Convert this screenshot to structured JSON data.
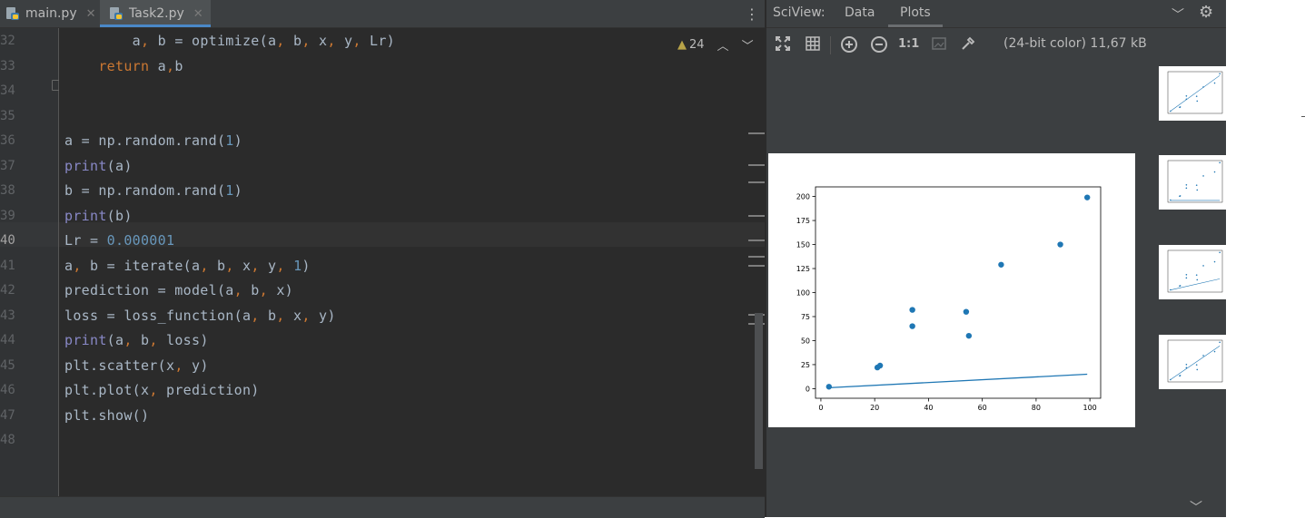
{
  "editor": {
    "tabs": [
      {
        "label": "main.py",
        "active": false
      },
      {
        "label": "Task2.py",
        "active": true
      }
    ],
    "warnings_count": "24",
    "line_numbers": [
      "32",
      "33",
      "34",
      "35",
      "36",
      "37",
      "38",
      "39",
      "40",
      "41",
      "42",
      "43",
      "44",
      "45",
      "46",
      "47",
      "48"
    ],
    "current_line": "40",
    "lines": [
      "        a, b = optimize(a, b, x, y, Lr)",
      "    return a,b",
      "",
      "",
      "a = np.random.rand(1)",
      "print(a)",
      "b = np.random.rand(1)",
      "print(b)",
      "Lr = 0.000001",
      "a, b = iterate(a, b, x, y, 1)",
      "prediction = model(a, b, x)",
      "loss = loss_function(a, b, x, y)",
      "print(a, b, loss)",
      "plt.scatter(x, y)",
      "plt.plot(x, prediction)",
      "plt.show()",
      ""
    ]
  },
  "sciview": {
    "title": "SciView:",
    "tabs": [
      "Data",
      "Plots"
    ],
    "active_tab": "Plots",
    "image_info": "(24-bit color) 11,67 kB",
    "toolbar": {
      "actual_size_label": "1:1"
    }
  },
  "colors": {
    "ide_bg": "#2b2b2b",
    "keyword": "#cc7832",
    "builtin": "#8888c6",
    "number": "#6897bb",
    "plot_blue": "#1f77b4"
  },
  "chart_data": {
    "type": "scatter",
    "xlim": [
      -2,
      104
    ],
    "ylim": [
      -10,
      210
    ],
    "xticks": [
      0,
      20,
      40,
      60,
      80,
      100
    ],
    "yticks": [
      0,
      25,
      50,
      75,
      100,
      125,
      150,
      175,
      200
    ],
    "points": {
      "x": [
        3,
        21,
        22,
        34,
        34,
        54,
        55,
        67,
        89,
        99
      ],
      "y": [
        2,
        22,
        24,
        65,
        82,
        80,
        55,
        129,
        150,
        199
      ]
    },
    "line": {
      "x": [
        3,
        99
      ],
      "y": [
        1,
        15
      ]
    },
    "title": "",
    "xlabel": "",
    "ylabel": "",
    "grid": false
  }
}
